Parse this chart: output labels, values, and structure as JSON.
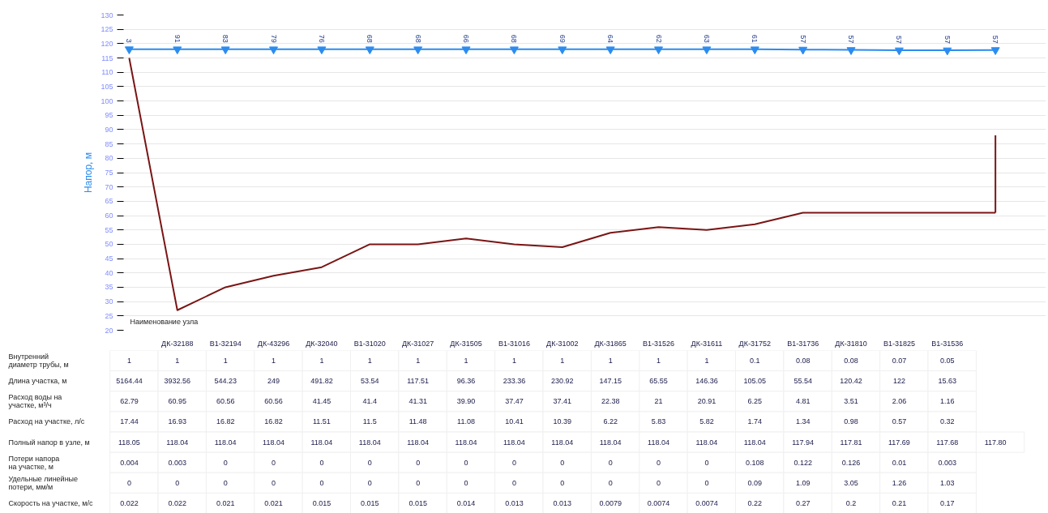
{
  "chart_data": [
    {
      "type": "line",
      "ylabel": "Напор, м",
      "xlabel": "Наименование узла",
      "categories": [
        null,
        "ДК-32188",
        "В1-32194",
        "ДК-43296",
        "ДК-32040",
        "В1-31020",
        "ДК-31027",
        "ДК-31505",
        "В1-31016",
        "ДК-31002",
        "ДК-31865",
        "В1-31526",
        "ДК-31611",
        "ДК-31752",
        "В1-31736",
        "ДК-31810",
        "В1-31825",
        "В1-31536",
        null
      ],
      "ylim": [
        20,
        130
      ],
      "yticks": [
        20,
        25,
        30,
        35,
        40,
        45,
        50,
        55,
        60,
        65,
        70,
        75,
        80,
        85,
        90,
        95,
        100,
        105,
        110,
        115,
        120,
        125,
        130
      ],
      "grid": "y",
      "series": [
        {
          "type": "line",
          "color": "#2b8cf0",
          "marker": "triangle",
          "values": [
            118.05,
            118.04,
            118.04,
            118.04,
            118.04,
            118.04,
            118.04,
            118.04,
            118.04,
            118.04,
            118.04,
            118.04,
            118.04,
            118.04,
            117.94,
            117.81,
            117.69,
            117.68,
            117.8
          ]
        },
        {
          "type": "line",
          "color": "#7a1515",
          "values": [
            115,
            27,
            35,
            39,
            42,
            50,
            50,
            52,
            50,
            49,
            54,
            56,
            55,
            57,
            61,
            61,
            61,
            61,
            61
          ],
          "errors": [
            null,
            null,
            null,
            null,
            null,
            null,
            null,
            null,
            null,
            null,
            null,
            null,
            null,
            null,
            null,
            null,
            null,
            null,
            [
              61,
              88
            ]
          ]
        }
      ],
      "annotations": [
        {
          "text": "3",
          "y": 118.05
        },
        {
          "text": "91",
          "x": "ДК-32188",
          "y": 118.04
        },
        {
          "text": "83",
          "x": "В1-32194",
          "y": 118.04
        },
        {
          "text": "79",
          "x": "ДК-43296",
          "y": 118.04
        },
        {
          "text": "76",
          "x": "ДК-32040",
          "y": 118.04
        },
        {
          "text": "68",
          "x": "В1-31020",
          "y": 118.04
        },
        {
          "text": "68",
          "x": "ДК-31027",
          "y": 118.04
        },
        {
          "text": "66",
          "x": "ДК-31505",
          "y": 118.04
        },
        {
          "text": "68",
          "x": "В1-31016",
          "y": 118.04
        },
        {
          "text": "69",
          "x": "ДК-31002",
          "y": 118.04
        },
        {
          "text": "64",
          "x": "ДК-31865",
          "y": 118.04
        },
        {
          "text": "62",
          "x": "В1-31526",
          "y": 118.04
        },
        {
          "text": "63",
          "x": "ДК-31611",
          "y": 118.04
        },
        {
          "text": "61",
          "x": "ДК-31752",
          "y": 118.04
        },
        {
          "text": "57",
          "x": "В1-31736",
          "y": 117.94
        },
        {
          "text": "57",
          "x": "ДК-31810",
          "y": 117.81
        },
        {
          "text": "57",
          "x": "В1-31825",
          "y": 117.69
        },
        {
          "text": "57",
          "x": "В1-31536",
          "y": 117.68
        },
        {
          "text": "57",
          "y": 117.8
        }
      ]
    },
    {
      "type": "heatmap",
      "tick_labels": "y",
      "categories": [
        null,
        "ДК-32188",
        "В1-32194",
        "ДК-43296",
        "ДК-32040",
        "В1-31020",
        "ДК-31027",
        "ДК-31505",
        "В1-31016",
        "ДК-31002",
        "ДК-31865",
        "В1-31526",
        "ДК-31611",
        "ДК-31752",
        "В1-31736",
        "ДК-31810",
        "В1-31825",
        "В1-31536",
        null
      ],
      "y_categories": [
        "Внутренний диаметр трубы, м",
        "Длина участка, м",
        "Расход воды на участке, м³/ч",
        "Расход на участке, л/с",
        "Полный напор в узле, м",
        "Потери напора на участке, м",
        "Удельные линейные потери, мм/м",
        "Скорость на участке, м/с"
      ],
      "cells": [
        [
          1,
          1,
          1,
          1,
          1,
          1,
          1,
          1,
          1,
          1,
          1,
          1,
          1,
          0.1,
          0.08,
          0.08,
          0.07,
          0.05,
          null
        ],
        [
          5164.44,
          3932.56,
          544.23,
          249,
          491.82,
          53.54,
          117.51,
          96.36,
          233.36,
          230.92,
          147.15,
          65.55,
          146.36,
          105.05,
          55.54,
          120.42,
          122,
          15.63,
          null
        ],
        [
          62.79,
          60.95,
          60.56,
          60.56,
          41.45,
          41.4,
          41.31,
          39.9,
          37.47,
          37.41,
          22.38,
          21,
          20.91,
          6.25,
          4.81,
          3.51,
          2.06,
          1.16,
          null
        ],
        [
          17.44,
          16.93,
          16.82,
          16.82,
          11.51,
          11.5,
          11.48,
          11.08,
          10.41,
          10.39,
          6.22,
          5.83,
          5.82,
          1.74,
          1.34,
          0.98,
          0.57,
          0.32,
          null
        ],
        [
          118.05,
          118.04,
          118.04,
          118.04,
          118.04,
          118.04,
          118.04,
          118.04,
          118.04,
          118.04,
          118.04,
          118.04,
          118.04,
          118.04,
          117.94,
          117.81,
          117.69,
          117.68,
          117.8
        ],
        [
          0.004,
          0.003,
          0,
          0,
          0,
          0,
          0,
          0,
          0,
          0,
          0,
          0,
          0,
          0.108,
          0.122,
          0.126,
          0.01,
          0.003,
          null
        ],
        [
          0,
          0,
          0,
          0,
          0,
          0,
          0,
          0,
          0,
          0,
          0,
          0,
          0,
          0.09,
          1.09,
          3.05,
          1.26,
          1.03,
          null
        ],
        [
          0.022,
          0.022,
          0.021,
          0.021,
          0.015,
          0.015,
          0.015,
          0.014,
          0.013,
          0.013,
          0.0079,
          0.0074,
          0.0074,
          0.22,
          0.27,
          0.2,
          0.21,
          0.17,
          null
        ]
      ],
      "cell_labels": [
        [
          "1",
          "1",
          "1",
          "1",
          "1",
          "1",
          "1",
          "1",
          "1",
          "1",
          "1",
          "1",
          "1",
          "0.1",
          "0.08",
          "0.08",
          "0.07",
          "0.05",
          null
        ],
        [
          "5164.44",
          "3932.56",
          "544.23",
          "249",
          "491.82",
          "53.54",
          "117.51",
          "96.36",
          "233.36",
          "230.92",
          "147.15",
          "65.55",
          "146.36",
          "105.05",
          "55.54",
          "120.42",
          "122",
          "15.63",
          null
        ],
        [
          "62.79",
          "60.95",
          "60.56",
          "60.56",
          "41.45",
          "41.4",
          "41.31",
          "39.90",
          "37.47",
          "37.41",
          "22.38",
          "21",
          "20.91",
          "6.25",
          "4.81",
          "3.51",
          "2.06",
          "1.16",
          null
        ],
        [
          "17.44",
          "16.93",
          "16.82",
          "16.82",
          "11.51",
          "11.5",
          "11.48",
          "11.08",
          "10.41",
          "10.39",
          "6.22",
          "5.83",
          "5.82",
          "1.74",
          "1.34",
          "0.98",
          "0.57",
          "0.32",
          null
        ],
        [
          "118.05",
          "118.04",
          "118.04",
          "118.04",
          "118.04",
          "118.04",
          "118.04",
          "118.04",
          "118.04",
          "118.04",
          "118.04",
          "118.04",
          "118.04",
          "118.04",
          "117.94",
          "117.81",
          "117.69",
          "117.68",
          "117.80"
        ],
        [
          "0.004",
          "0.003",
          "0",
          "0",
          "0",
          "0",
          "0",
          "0",
          "0",
          "0",
          "0",
          "0",
          "0",
          "0.108",
          "0.122",
          "0.126",
          "0.01",
          "0.003",
          null
        ],
        [
          "0",
          "0",
          "0",
          "0",
          "0",
          "0",
          "0",
          "0",
          "0",
          "0",
          "0",
          "0",
          "0",
          "0.09",
          "1.09",
          "3.05",
          "1.26",
          "1.03",
          null
        ],
        [
          "0.022",
          "0.022",
          "0.021",
          "0.021",
          "0.015",
          "0.015",
          "0.015",
          "0.014",
          "0.013",
          "0.013",
          "0.0079",
          "0.0074",
          "0.0074",
          "0.22",
          "0.27",
          "0.2",
          "0.21",
          "0.17",
          null
        ]
      ]
    }
  ]
}
